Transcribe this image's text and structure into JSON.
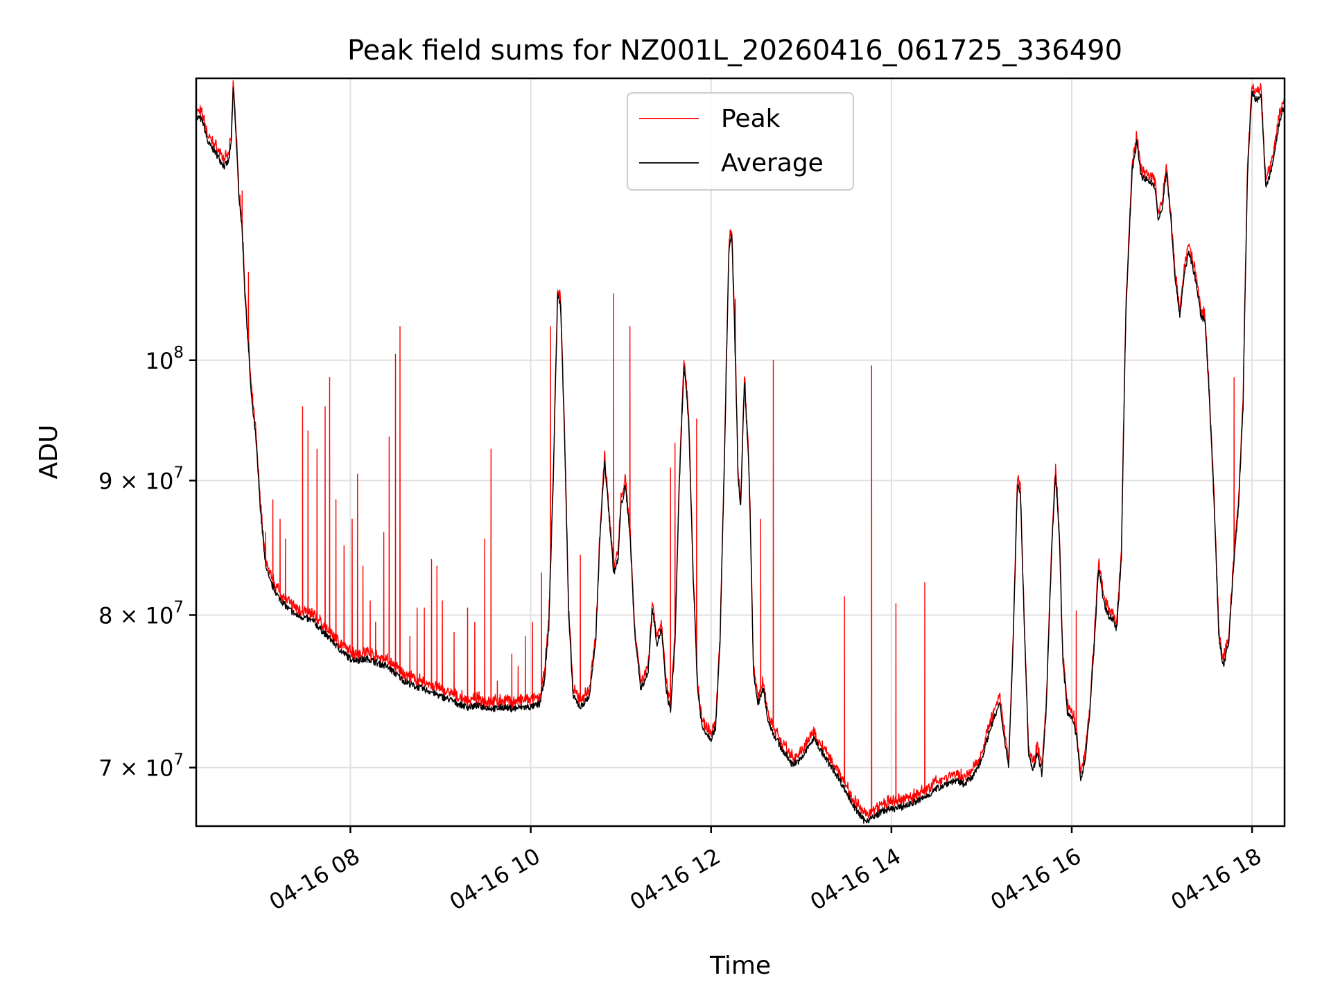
{
  "chart_data": {
    "type": "line",
    "title": "Peak field sums for NZ001L_20260416_061725_336490",
    "xlabel": "Time",
    "ylabel": "ADU",
    "yscale": "log",
    "xlim": [
      6.29,
      18.36
    ],
    "ylim": [
      66500000,
      128000000
    ],
    "grid": true,
    "legend_position": "top-center",
    "x_ticks": [
      {
        "value": 8,
        "label": "04-16 08"
      },
      {
        "value": 10,
        "label": "04-16 10"
      },
      {
        "value": 12,
        "label": "04-16 12"
      },
      {
        "value": 14,
        "label": "04-16 14"
      },
      {
        "value": 16,
        "label": "04-16 16"
      },
      {
        "value": 18,
        "label": "04-16 18"
      }
    ],
    "y_ticks": [
      {
        "value": 70000000,
        "label_base": "7 × 10",
        "label_exp": "7"
      },
      {
        "value": 80000000,
        "label_base": "8 × 10",
        "label_exp": "7"
      },
      {
        "value": 90000000,
        "label_base": "9 × 10",
        "label_exp": "7"
      },
      {
        "value": 100000000,
        "label_base": "10",
        "label_exp": "8"
      }
    ],
    "series": [
      {
        "name": "Peak",
        "color": "#ff0000"
      },
      {
        "name": "Average",
        "color": "#000000"
      }
    ],
    "average_points": [
      [
        6.29,
        123500000
      ],
      [
        6.33,
        123700000
      ],
      [
        6.37,
        123000000
      ],
      [
        6.42,
        121000000
      ],
      [
        6.5,
        120000000
      ],
      [
        6.6,
        118500000
      ],
      [
        6.65,
        119000000
      ],
      [
        6.68,
        121000000
      ],
      [
        6.7,
        127000000
      ],
      [
        6.72,
        124000000
      ],
      [
        6.76,
        116000000
      ],
      [
        6.8,
        112000000
      ],
      [
        6.83,
        106000000
      ],
      [
        6.87,
        101000000
      ],
      [
        6.9,
        97000000
      ],
      [
        6.95,
        93500000
      ],
      [
        7.0,
        88000000
      ],
      [
        7.05,
        84000000
      ],
      [
        7.1,
        82500000
      ],
      [
        7.2,
        81300000
      ],
      [
        7.3,
        80500000
      ],
      [
        7.4,
        80000000
      ],
      [
        7.5,
        79800000
      ],
      [
        7.6,
        79500000
      ],
      [
        7.7,
        78800000
      ],
      [
        7.8,
        78200000
      ],
      [
        7.9,
        77500000
      ],
      [
        8.0,
        77000000
      ],
      [
        8.1,
        76900000
      ],
      [
        8.2,
        77000000
      ],
      [
        8.3,
        76700000
      ],
      [
        8.4,
        76500000
      ],
      [
        8.5,
        76000000
      ],
      [
        8.6,
        75500000
      ],
      [
        8.7,
        75200000
      ],
      [
        8.8,
        75000000
      ],
      [
        8.9,
        74800000
      ],
      [
        9.0,
        74500000
      ],
      [
        9.1,
        74300000
      ],
      [
        9.2,
        74000000
      ],
      [
        9.3,
        73800000
      ],
      [
        9.4,
        73900000
      ],
      [
        9.5,
        73800000
      ],
      [
        9.6,
        73700000
      ],
      [
        9.7,
        73800000
      ],
      [
        9.8,
        73700000
      ],
      [
        9.9,
        73800000
      ],
      [
        10.0,
        73800000
      ],
      [
        10.1,
        74000000
      ],
      [
        10.15,
        75500000
      ],
      [
        10.2,
        79000000
      ],
      [
        10.25,
        90000000
      ],
      [
        10.3,
        106000000
      ],
      [
        10.33,
        105000000
      ],
      [
        10.37,
        95000000
      ],
      [
        10.42,
        80000000
      ],
      [
        10.47,
        74500000
      ],
      [
        10.55,
        73800000
      ],
      [
        10.65,
        74500000
      ],
      [
        10.72,
        78000000
      ],
      [
        10.77,
        86000000
      ],
      [
        10.82,
        91500000
      ],
      [
        10.86,
        88000000
      ],
      [
        10.92,
        83000000
      ],
      [
        10.97,
        84000000
      ],
      [
        11.0,
        88000000
      ],
      [
        11.05,
        89500000
      ],
      [
        11.1,
        86000000
      ],
      [
        11.15,
        79000000
      ],
      [
        11.22,
        75000000
      ],
      [
        11.3,
        76000000
      ],
      [
        11.35,
        80500000
      ],
      [
        11.4,
        78000000
      ],
      [
        11.45,
        79000000
      ],
      [
        11.5,
        75000000
      ],
      [
        11.55,
        73500000
      ],
      [
        11.6,
        78000000
      ],
      [
        11.65,
        90000000
      ],
      [
        11.7,
        99500000
      ],
      [
        11.75,
        95000000
      ],
      [
        11.8,
        83000000
      ],
      [
        11.85,
        75000000
      ],
      [
        11.9,
        72500000
      ],
      [
        12.0,
        71800000
      ],
      [
        12.05,
        72500000
      ],
      [
        12.1,
        78000000
      ],
      [
        12.15,
        92000000
      ],
      [
        12.2,
        110500000
      ],
      [
        12.23,
        111500000
      ],
      [
        12.27,
        100000000
      ],
      [
        12.3,
        90000000
      ],
      [
        12.33,
        88000000
      ],
      [
        12.37,
        98000000
      ],
      [
        12.42,
        91000000
      ],
      [
        12.47,
        76000000
      ],
      [
        12.52,
        74000000
      ],
      [
        12.58,
        75000000
      ],
      [
        12.63,
        73000000
      ],
      [
        12.7,
        72000000
      ],
      [
        12.8,
        71000000
      ],
      [
        12.9,
        70200000
      ],
      [
        13.0,
        70500000
      ],
      [
        13.1,
        71500000
      ],
      [
        13.15,
        71800000
      ],
      [
        13.2,
        71200000
      ],
      [
        13.3,
        70300000
      ],
      [
        13.4,
        69500000
      ],
      [
        13.5,
        68500000
      ],
      [
        13.6,
        67500000
      ],
      [
        13.7,
        66800000
      ],
      [
        13.8,
        67000000
      ],
      [
        13.9,
        67400000
      ],
      [
        14.0,
        67500000
      ],
      [
        14.1,
        67600000
      ],
      [
        14.2,
        67800000
      ],
      [
        14.3,
        68000000
      ],
      [
        14.4,
        68300000
      ],
      [
        14.5,
        68700000
      ],
      [
        14.6,
        69000000
      ],
      [
        14.7,
        69200000
      ],
      [
        14.8,
        69000000
      ],
      [
        14.9,
        69400000
      ],
      [
        15.0,
        70500000
      ],
      [
        15.1,
        72500000
      ],
      [
        15.2,
        74000000
      ],
      [
        15.25,
        72000000
      ],
      [
        15.3,
        70000000
      ],
      [
        15.35,
        78000000
      ],
      [
        15.4,
        90000000
      ],
      [
        15.43,
        89000000
      ],
      [
        15.47,
        80000000
      ],
      [
        15.52,
        71000000
      ],
      [
        15.57,
        69800000
      ],
      [
        15.62,
        71000000
      ],
      [
        15.67,
        69500000
      ],
      [
        15.72,
        74000000
      ],
      [
        15.78,
        85000000
      ],
      [
        15.82,
        90500000
      ],
      [
        15.86,
        86000000
      ],
      [
        15.9,
        77000000
      ],
      [
        15.95,
        73500000
      ],
      [
        16.0,
        73200000
      ],
      [
        16.05,
        72000000
      ],
      [
        16.1,
        69300000
      ],
      [
        16.15,
        70500000
      ],
      [
        16.2,
        73500000
      ],
      [
        16.25,
        78000000
      ],
      [
        16.3,
        83500000
      ],
      [
        16.35,
        81000000
      ],
      [
        16.4,
        80000000
      ],
      [
        16.45,
        79800000
      ],
      [
        16.5,
        79000000
      ],
      [
        16.55,
        84000000
      ],
      [
        16.6,
        104000000
      ],
      [
        16.67,
        118000000
      ],
      [
        16.72,
        121000000
      ],
      [
        16.77,
        117500000
      ],
      [
        16.85,
        117000000
      ],
      [
        16.92,
        116500000
      ],
      [
        16.96,
        113000000
      ],
      [
        17.0,
        114000000
      ],
      [
        17.05,
        118000000
      ],
      [
        17.1,
        113000000
      ],
      [
        17.15,
        107000000
      ],
      [
        17.2,
        104000000
      ],
      [
        17.25,
        108000000
      ],
      [
        17.3,
        110000000
      ],
      [
        17.38,
        107000000
      ],
      [
        17.43,
        104000000
      ],
      [
        17.48,
        103500000
      ],
      [
        17.53,
        96000000
      ],
      [
        17.58,
        88000000
      ],
      [
        17.63,
        78500000
      ],
      [
        17.68,
        76500000
      ],
      [
        17.74,
        78000000
      ],
      [
        17.8,
        84000000
      ],
      [
        17.85,
        88000000
      ],
      [
        17.9,
        96000000
      ],
      [
        17.95,
        118000000
      ],
      [
        18.0,
        126500000
      ],
      [
        18.05,
        125500000
      ],
      [
        18.1,
        126000000
      ],
      [
        18.15,
        116500000
      ],
      [
        18.2,
        117500000
      ],
      [
        18.25,
        120000000
      ],
      [
        18.3,
        123000000
      ],
      [
        18.34,
        124500000
      ],
      [
        18.36,
        124300000
      ]
    ],
    "peak_spikes": [
      [
        6.8,
        116000000
      ],
      [
        6.87,
        108000000
      ],
      [
        7.06,
        86000000
      ],
      [
        7.14,
        88500000
      ],
      [
        7.22,
        87000000
      ],
      [
        7.28,
        85500000
      ],
      [
        7.47,
        96000000
      ],
      [
        7.53,
        94000000
      ],
      [
        7.63,
        92500000
      ],
      [
        7.72,
        96000000
      ],
      [
        7.77,
        98500000
      ],
      [
        7.84,
        88500000
      ],
      [
        7.93,
        85000000
      ],
      [
        8.02,
        87000000
      ],
      [
        8.08,
        90500000
      ],
      [
        8.14,
        83500000
      ],
      [
        8.22,
        81000000
      ],
      [
        8.28,
        79500000
      ],
      [
        8.37,
        86000000
      ],
      [
        8.43,
        93500000
      ],
      [
        8.5,
        100500000
      ],
      [
        8.55,
        103000000
      ],
      [
        8.66,
        78500000
      ],
      [
        8.74,
        80500000
      ],
      [
        8.82,
        80500000
      ],
      [
        8.9,
        84000000
      ],
      [
        8.96,
        83500000
      ],
      [
        9.02,
        81000000
      ],
      [
        9.15,
        78800000
      ],
      [
        9.3,
        80500000
      ],
      [
        9.38,
        79500000
      ],
      [
        9.49,
        85500000
      ],
      [
        9.56,
        92500000
      ],
      [
        9.63,
        75500000
      ],
      [
        9.79,
        77300000
      ],
      [
        9.86,
        76500000
      ],
      [
        9.94,
        78500000
      ],
      [
        10.02,
        79500000
      ],
      [
        10.12,
        83000000
      ],
      [
        10.22,
        103000000
      ],
      [
        10.55,
        84300000
      ],
      [
        10.92,
        106000000
      ],
      [
        11.1,
        103000000
      ],
      [
        11.55,
        91000000
      ],
      [
        11.6,
        93000000
      ],
      [
        11.84,
        95000000
      ],
      [
        12.22,
        111500000
      ],
      [
        12.27,
        105500000
      ],
      [
        12.55,
        87000000
      ],
      [
        12.69,
        100000000
      ],
      [
        13.48,
        81300000
      ],
      [
        13.78,
        99500000
      ],
      [
        14.05,
        80800000
      ],
      [
        14.37,
        82300000
      ],
      [
        16.05,
        80300000
      ],
      [
        17.8,
        98500000
      ]
    ]
  }
}
